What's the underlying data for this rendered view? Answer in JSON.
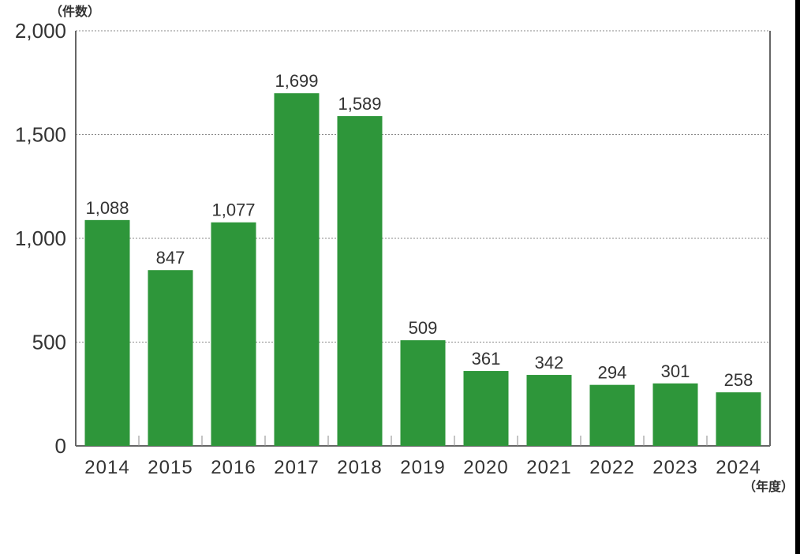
{
  "chart_data": {
    "type": "bar",
    "categories": [
      "2014",
      "2015",
      "2016",
      "2017",
      "2018",
      "2019",
      "2020",
      "2021",
      "2022",
      "2023",
      "2024"
    ],
    "values": [
      1088,
      847,
      1077,
      1699,
      1589,
      509,
      361,
      342,
      294,
      301,
      258
    ],
    "value_labels": [
      "1,088",
      "847",
      "1,077",
      "1,699",
      "1,589",
      "509",
      "361",
      "342",
      "294",
      "301",
      "258"
    ],
    "ylabel": "（件数）",
    "xlabel": "（年度）",
    "ylim": [
      0,
      2000
    ],
    "yticks": [
      0,
      500,
      1000,
      1500,
      2000
    ],
    "ytick_labels": [
      "0",
      "500",
      "1,000",
      "1,500",
      "2,000"
    ],
    "grid": "horizontal dotted",
    "bar_color": "#2e963a"
  }
}
